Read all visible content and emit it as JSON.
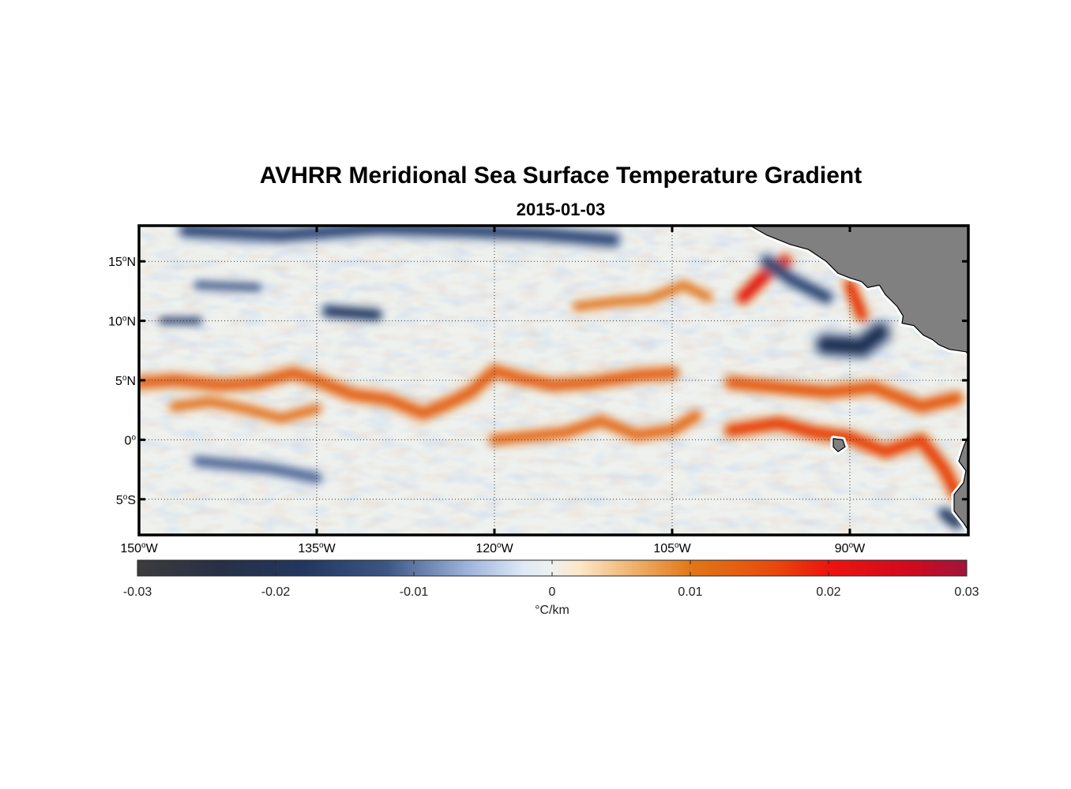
{
  "chart_data": {
    "type": "heatmap",
    "title": "AVHRR Meridional Sea Surface Temperature Gradient",
    "subtitle": "2015-01-03",
    "x_ticks": [
      {
        "value": -150,
        "deg": "150",
        "sym": "o",
        "hem": "W"
      },
      {
        "value": -135,
        "deg": "135",
        "sym": "o",
        "hem": "W"
      },
      {
        "value": -120,
        "deg": "120",
        "sym": "o",
        "hem": "W"
      },
      {
        "value": -105,
        "deg": "105",
        "sym": "o",
        "hem": "W"
      },
      {
        "value": -90,
        "deg": "90",
        "sym": "o",
        "hem": "W"
      }
    ],
    "y_ticks": [
      {
        "value": 15,
        "deg": "15",
        "sym": "o",
        "hem": "N"
      },
      {
        "value": 10,
        "deg": "10",
        "sym": "o",
        "hem": "N"
      },
      {
        "value": 5,
        "deg": "5",
        "sym": "o",
        "hem": "N"
      },
      {
        "value": 0,
        "deg": "0",
        "sym": "o",
        "hem": ""
      },
      {
        "value": -5,
        "deg": "5",
        "sym": "o",
        "hem": "S"
      }
    ],
    "xlim": [
      -150,
      -80
    ],
    "ylim": [
      -8,
      18
    ],
    "grid": true,
    "colorbar": {
      "ticks": [
        {
          "value": -0.03,
          "label": "-0.03"
        },
        {
          "value": -0.02,
          "label": "-0.02"
        },
        {
          "value": -0.01,
          "label": "-0.01"
        },
        {
          "value": 0,
          "label": "0"
        },
        {
          "value": 0.01,
          "label": "0.01"
        },
        {
          "value": 0.02,
          "label": "0.02"
        },
        {
          "value": 0.03,
          "label": "0.03"
        }
      ],
      "range": [
        -0.03,
        0.03
      ],
      "unit": "°C/km",
      "stops": [
        {
          "v": -0.03,
          "c": "#3c3c3e"
        },
        {
          "v": -0.024,
          "c": "#283046"
        },
        {
          "v": -0.018,
          "c": "#22375f"
        },
        {
          "v": -0.012,
          "c": "#3c5684"
        },
        {
          "v": -0.006,
          "c": "#9fb5dc"
        },
        {
          "v": -0.002,
          "c": "#dfeaf6"
        },
        {
          "v": 0.0,
          "c": "#eef1ee"
        },
        {
          "v": 0.002,
          "c": "#fde7c8"
        },
        {
          "v": 0.006,
          "c": "#eeb06a"
        },
        {
          "v": 0.01,
          "c": "#e07818"
        },
        {
          "v": 0.016,
          "c": "#e84a0c"
        },
        {
          "v": 0.02,
          "c": "#ec1410"
        },
        {
          "v": 0.026,
          "c": "#d00a1e"
        },
        {
          "v": 0.03,
          "c": "#a0143c"
        }
      ]
    },
    "features": [
      {
        "name": "equatorial front 5N",
        "path": [
          [
            -150,
            4.8
          ],
          [
            -147,
            5
          ],
          [
            -143,
            4.6
          ],
          [
            -140,
            4.8
          ],
          [
            -137,
            5.6
          ],
          [
            -135,
            5
          ],
          [
            -132,
            3.8
          ],
          [
            -129,
            3.4
          ],
          [
            -126,
            2.2
          ],
          [
            -124,
            3
          ],
          [
            -122,
            4
          ],
          [
            -120,
            5.8
          ],
          [
            -118,
            5.2
          ],
          [
            -115,
            4.6
          ],
          [
            -112,
            4.8
          ],
          [
            -108,
            5.4
          ],
          [
            -105,
            5.6
          ]
        ],
        "value": 0.013,
        "width": 0.9
      },
      {
        "name": "front south branch",
        "path": [
          [
            -147,
            2.8
          ],
          [
            -144,
            3.2
          ],
          [
            -141,
            2.6
          ],
          [
            -138,
            1.8
          ],
          [
            -135,
            2.6
          ]
        ],
        "value": 0.011,
        "width": 0.7
      },
      {
        "name": "equator front",
        "path": [
          [
            -120,
            0
          ],
          [
            -117,
            0.3
          ],
          [
            -114,
            0.6
          ],
          [
            -111,
            1.6
          ],
          [
            -108,
            0.4
          ],
          [
            -105,
            0.8
          ],
          [
            -103,
            2.0
          ]
        ],
        "value": 0.012,
        "width": 0.8
      },
      {
        "name": "equator front east",
        "path": [
          [
            -100,
            0.8
          ],
          [
            -96,
            1.4
          ],
          [
            -93,
            0.6
          ],
          [
            -90,
            0.2
          ],
          [
            -87,
            -1.0
          ],
          [
            -84,
            0
          ],
          [
            -82,
            -2.5
          ],
          [
            -81,
            -4.5
          ]
        ],
        "value": 0.017,
        "width": 0.9
      },
      {
        "name": "eastern 3N band",
        "path": [
          [
            -100,
            4.8
          ],
          [
            -96,
            4.4
          ],
          [
            -92,
            4.0
          ],
          [
            -88,
            4.4
          ],
          [
            -84,
            2.8
          ],
          [
            -81,
            3.5
          ]
        ],
        "value": 0.014,
        "width": 0.9
      },
      {
        "name": "tehuantepec warm",
        "path": [
          [
            -99,
            12
          ],
          [
            -97,
            14
          ],
          [
            -95.5,
            15
          ]
        ],
        "value": 0.022,
        "width": 0.9
      },
      {
        "name": "papagayo warm",
        "path": [
          [
            -90,
            13
          ],
          [
            -89,
            10.5
          ]
        ],
        "value": 0.018,
        "width": 0.8
      },
      {
        "name": "north warm streak",
        "path": [
          [
            -113,
            11.2
          ],
          [
            -110,
            11.6
          ],
          [
            -107,
            11.8
          ],
          [
            -104,
            13
          ],
          [
            -102,
            12
          ]
        ],
        "value": 0.01,
        "width": 0.7
      },
      {
        "name": "north cold blob 1",
        "path": [
          [
            -134,
            10.8
          ],
          [
            -130,
            10.5
          ]
        ],
        "value": -0.018,
        "width": 0.8
      },
      {
        "name": "north cold blob 2",
        "path": [
          [
            -148,
            10
          ],
          [
            -145,
            10
          ]
        ],
        "value": -0.016,
        "width": 0.5
      },
      {
        "name": "tehuantepec cold",
        "path": [
          [
            -97,
            15
          ],
          [
            -95,
            13.5
          ],
          [
            -92,
            12
          ]
        ],
        "value": -0.015,
        "width": 0.9
      },
      {
        "name": "papagayo cold",
        "path": [
          [
            -92,
            8
          ],
          [
            -89,
            7.8
          ],
          [
            -87.5,
            9
          ]
        ],
        "value": -0.02,
        "width": 1.3
      },
      {
        "name": "top cold band",
        "path": [
          [
            -146,
            17.6
          ],
          [
            -138,
            17.2
          ],
          [
            -130,
            17.8
          ],
          [
            -123,
            17.6
          ],
          [
            -116,
            17.3
          ],
          [
            -110,
            16.8
          ]
        ],
        "value": -0.014,
        "width": 1.0
      },
      {
        "name": "mid cold patch",
        "path": [
          [
            -145,
            13
          ],
          [
            -140,
            12.8
          ]
        ],
        "value": -0.012,
        "width": 0.6
      },
      {
        "name": "south cold patch",
        "path": [
          [
            -145,
            -1.8
          ],
          [
            -139,
            -2.4
          ],
          [
            -135,
            -3.2
          ]
        ],
        "value": -0.011,
        "width": 0.8
      },
      {
        "name": "southeast cold patch",
        "path": [
          [
            -82,
            -6.2
          ],
          [
            -81,
            -7
          ]
        ],
        "value": -0.018,
        "width": 0.8
      }
    ],
    "land": [
      {
        "name": "central america",
        "coords": [
          [
            -98.4,
            18
          ],
          [
            -97,
            17.2
          ],
          [
            -95,
            16.4
          ],
          [
            -93.5,
            16
          ],
          [
            -92,
            15
          ],
          [
            -91,
            14
          ],
          [
            -90,
            13.6
          ],
          [
            -89,
            13.3
          ],
          [
            -88.5,
            12.8
          ],
          [
            -87.5,
            13
          ],
          [
            -87,
            12.2
          ],
          [
            -86,
            11.2
          ],
          [
            -85.5,
            10.4
          ],
          [
            -85.6,
            9.8
          ],
          [
            -84.6,
            9.6
          ],
          [
            -83.8,
            8.8
          ],
          [
            -83,
            8.4
          ],
          [
            -82.5,
            8
          ],
          [
            -81.6,
            7.6
          ],
          [
            -80.2,
            7.4
          ],
          [
            -80,
            7.2
          ],
          [
            -80,
            18
          ]
        ]
      },
      {
        "name": "south america",
        "coords": [
          [
            -80,
            0.4
          ],
          [
            -80.4,
            -0.6
          ],
          [
            -80.8,
            -1.8
          ],
          [
            -80.2,
            -2.6
          ],
          [
            -80.4,
            -3.6
          ],
          [
            -81.2,
            -4.6
          ],
          [
            -81.2,
            -6
          ],
          [
            -80.4,
            -7
          ],
          [
            -80,
            -7.6
          ],
          [
            -80,
            0.4
          ]
        ]
      },
      {
        "name": "galapagos",
        "coords": [
          [
            -91.4,
            0.1
          ],
          [
            -90.6,
            0.0
          ],
          [
            -90.4,
            -0.6
          ],
          [
            -91.0,
            -1.0
          ],
          [
            -91.4,
            -0.6
          ]
        ]
      }
    ]
  }
}
